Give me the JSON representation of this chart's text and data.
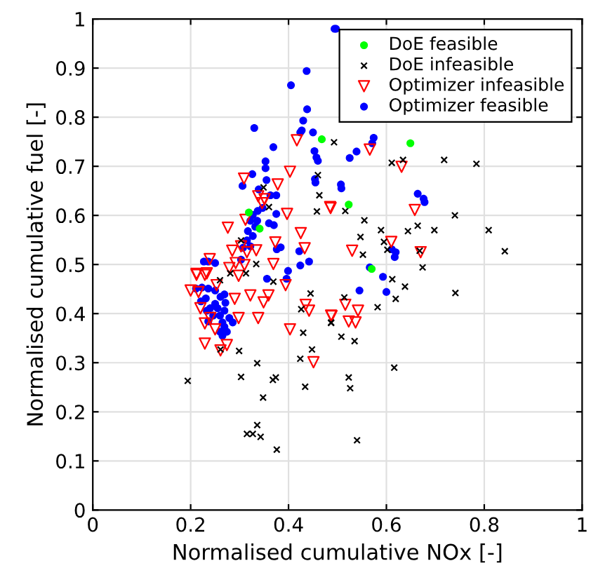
{
  "chart_data": {
    "type": "scatter",
    "xlabel": "Normalised cumulative NOx [-]",
    "ylabel": "Normalised cumulative fuel [-]",
    "xlim": [
      0,
      1
    ],
    "ylim": [
      0,
      1
    ],
    "xticks": [
      0,
      0.2,
      0.4,
      0.6,
      0.8,
      1
    ],
    "yticks": [
      0,
      0.1,
      0.2,
      0.3,
      0.4,
      0.5,
      0.6,
      0.7,
      0.8,
      0.9,
      1
    ],
    "grid": true,
    "legend": "top right",
    "series": [
      {
        "name": "DoE feasible",
        "color": "#00ff00",
        "marker": "circle",
        "x": [
          0.468,
          0.649,
          0.523,
          0.319,
          0.341,
          0.57
        ],
        "values": [
          0.755,
          0.747,
          0.622,
          0.606,
          0.573,
          0.491
        ]
      },
      {
        "name": "DoE infeasible",
        "color": "#000000",
        "marker": "cross",
        "x": [
          0.493,
          0.46,
          0.463,
          0.458,
          0.349,
          0.36,
          0.303,
          0.334,
          0.611,
          0.634,
          0.718,
          0.784,
          0.516,
          0.555,
          0.589,
          0.547,
          0.595,
          0.644,
          0.664,
          0.698,
          0.74,
          0.809,
          0.842,
          0.552,
          0.602,
          0.668,
          0.674,
          0.612,
          0.638,
          0.741,
          0.619,
          0.582,
          0.514,
          0.487,
          0.508,
          0.535,
          0.616,
          0.523,
          0.526,
          0.54,
          0.26,
          0.281,
          0.313,
          0.369,
          0.445,
          0.426,
          0.43,
          0.487,
          0.448,
          0.424,
          0.261,
          0.299,
          0.336,
          0.303,
          0.368,
          0.374,
          0.348,
          0.434,
          0.194,
          0.336,
          0.315,
          0.327,
          0.343,
          0.376
        ],
        "values": [
          0.749,
          0.682,
          0.641,
          0.608,
          0.657,
          0.617,
          0.549,
          0.501,
          0.707,
          0.713,
          0.713,
          0.705,
          0.609,
          0.59,
          0.57,
          0.556,
          0.546,
          0.568,
          0.579,
          0.57,
          0.6,
          0.57,
          0.527,
          0.52,
          0.53,
          0.528,
          0.494,
          0.47,
          0.455,
          0.442,
          0.43,
          0.413,
          0.433,
          0.381,
          0.353,
          0.344,
          0.29,
          0.27,
          0.248,
          0.142,
          0.468,
          0.482,
          0.482,
          0.465,
          0.441,
          0.409,
          0.361,
          0.382,
          0.327,
          0.308,
          0.327,
          0.324,
          0.299,
          0.271,
          0.265,
          0.27,
          0.229,
          0.251,
          0.263,
          0.173,
          0.155,
          0.155,
          0.149,
          0.123
        ]
      },
      {
        "name": "Optimizer infeasible",
        "color": "#ff0000",
        "marker": "triangle",
        "x": [
          0.417,
          0.403,
          0.309,
          0.378,
          0.338,
          0.351,
          0.346,
          0.397,
          0.486,
          0.312,
          0.276,
          0.425,
          0.433,
          0.373,
          0.303,
          0.285,
          0.334,
          0.315,
          0.369,
          0.239,
          0.292,
          0.31,
          0.212,
          0.233,
          0.279,
          0.566,
          0.631,
          0.485,
          0.658,
          0.61,
          0.53,
          0.67,
          0.488,
          0.516,
          0.542,
          0.523,
          0.537,
          0.212,
          0.229,
          0.298,
          0.216,
          0.2,
          0.322,
          0.29,
          0.359,
          0.349,
          0.394,
          0.435,
          0.442,
          0.487,
          0.22,
          0.24,
          0.298,
          0.338,
          0.229,
          0.25,
          0.403,
          0.229,
          0.274,
          0.261,
          0.451,
          0.253
        ],
        "values": [
          0.753,
          0.689,
          0.675,
          0.663,
          0.639,
          0.633,
          0.625,
          0.603,
          0.615,
          0.591,
          0.575,
          0.564,
          0.533,
          0.545,
          0.537,
          0.528,
          0.529,
          0.525,
          0.501,
          0.511,
          0.503,
          0.499,
          0.481,
          0.482,
          0.493,
          0.734,
          0.699,
          0.617,
          0.611,
          0.546,
          0.528,
          0.525,
          0.395,
          0.418,
          0.406,
          0.384,
          0.382,
          0.479,
          0.479,
          0.477,
          0.444,
          0.447,
          0.437,
          0.43,
          0.437,
          0.423,
          0.458,
          0.418,
          0.406,
          0.396,
          0.411,
          0.391,
          0.391,
          0.391,
          0.38,
          0.368,
          0.368,
          0.339,
          0.336,
          0.325,
          0.301,
          0.458
        ]
      },
      {
        "name": "Optimizer feasible",
        "color": "#0000ff",
        "marker": "circle",
        "x": [
          0.494,
          0.437,
          0.405,
          0.438,
          0.43,
          0.427,
          0.424,
          0.45,
          0.33,
          0.369,
          0.453,
          0.457,
          0.46,
          0.353,
          0.353,
          0.326,
          0.355,
          0.454,
          0.455,
          0.306,
          0.339,
          0.363,
          0.375,
          0.347,
          0.337,
          0.327,
          0.375,
          0.322,
          0.336,
          0.332,
          0.317,
          0.36,
          0.37,
          0.327,
          0.315,
          0.322,
          0.307,
          0.384,
          0.376,
          0.422,
          0.442,
          0.424,
          0.399,
          0.227,
          0.236,
          0.25,
          0.303,
          0.497,
          0.571,
          0.574,
          0.525,
          0.539,
          0.507,
          0.508,
          0.664,
          0.676,
          0.678,
          0.611,
          0.619,
          0.617,
          0.566,
          0.593,
          0.545,
          0.6,
          0.356,
          0.396,
          0.211,
          0.223,
          0.236,
          0.25,
          0.261,
          0.269,
          0.231,
          0.221,
          0.24,
          0.233,
          0.255,
          0.269,
          0.246,
          0.26,
          0.279,
          0.286,
          0.265,
          0.269,
          0.26,
          0.265,
          0.274,
          0.236,
          0.25,
          0.271
        ],
        "values": [
          0.98,
          0.894,
          0.865,
          0.816,
          0.793,
          0.773,
          0.769,
          0.769,
          0.778,
          0.739,
          0.731,
          0.718,
          0.711,
          0.71,
          0.696,
          0.684,
          0.672,
          0.674,
          0.667,
          0.66,
          0.653,
          0.641,
          0.641,
          0.615,
          0.609,
          0.601,
          0.603,
          0.589,
          0.589,
          0.577,
          0.568,
          0.584,
          0.58,
          0.558,
          0.549,
          0.537,
          0.534,
          0.535,
          0.531,
          0.527,
          0.506,
          0.498,
          0.487,
          0.506,
          0.506,
          0.503,
          0.51,
          0.98,
          0.747,
          0.758,
          0.717,
          0.73,
          0.663,
          0.655,
          0.644,
          0.634,
          0.627,
          0.531,
          0.525,
          0.515,
          0.494,
          0.475,
          0.447,
          0.444,
          0.471,
          0.471,
          0.451,
          0.453,
          0.451,
          0.447,
          0.434,
          0.439,
          0.431,
          0.425,
          0.411,
          0.406,
          0.411,
          0.406,
          0.396,
          0.396,
          0.391,
          0.382,
          0.382,
          0.373,
          0.363,
          0.355,
          0.363,
          0.384,
          0.42,
          0.422
        ]
      }
    ]
  }
}
